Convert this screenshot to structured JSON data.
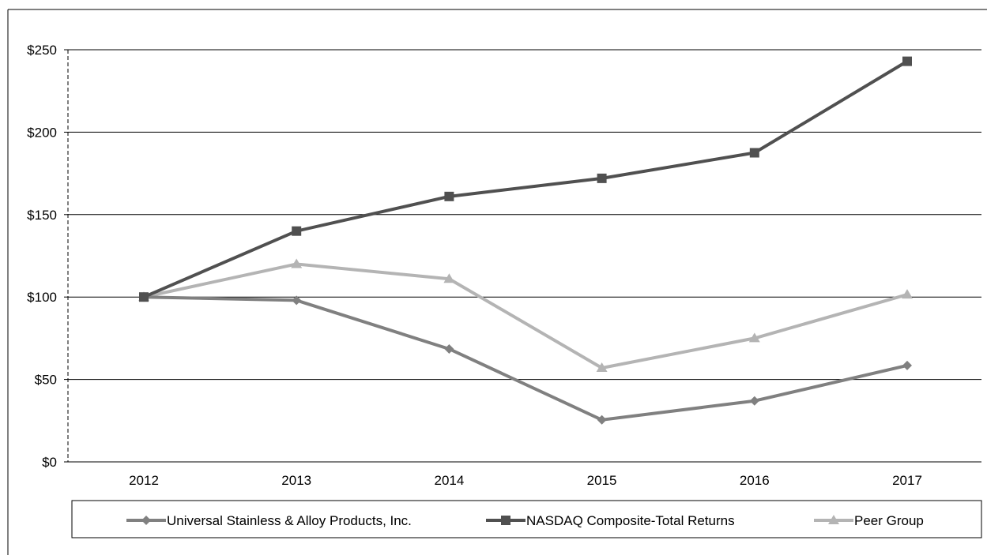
{
  "chart_data": {
    "type": "line",
    "title": "",
    "xlabel": "",
    "ylabel": "",
    "categories": [
      "2012",
      "2013",
      "2014",
      "2015",
      "2016",
      "2017"
    ],
    "ylim": [
      0,
      250
    ],
    "yticks": [
      0,
      50,
      100,
      150,
      200,
      250
    ],
    "ytick_labels": [
      "$0",
      "$50",
      "$100",
      "$150",
      "$200",
      "$250"
    ],
    "grid": true,
    "legend_position": "bottom",
    "series": [
      {
        "name": "Universal Stainless & Alloy Products, Inc.",
        "values": [
          100,
          98,
          68.5,
          25.5,
          37,
          58.5
        ],
        "color": "#808080",
        "marker": "diamond"
      },
      {
        "name": "NASDAQ Composite-Total Returns",
        "values": [
          100,
          140,
          161,
          172,
          187.5,
          243
        ],
        "color": "#505050",
        "marker": "square"
      },
      {
        "name": "Peer Group",
        "values": [
          100,
          120,
          111,
          57,
          75,
          101.5
        ],
        "color": "#b4b4b4",
        "marker": "triangle"
      }
    ]
  }
}
